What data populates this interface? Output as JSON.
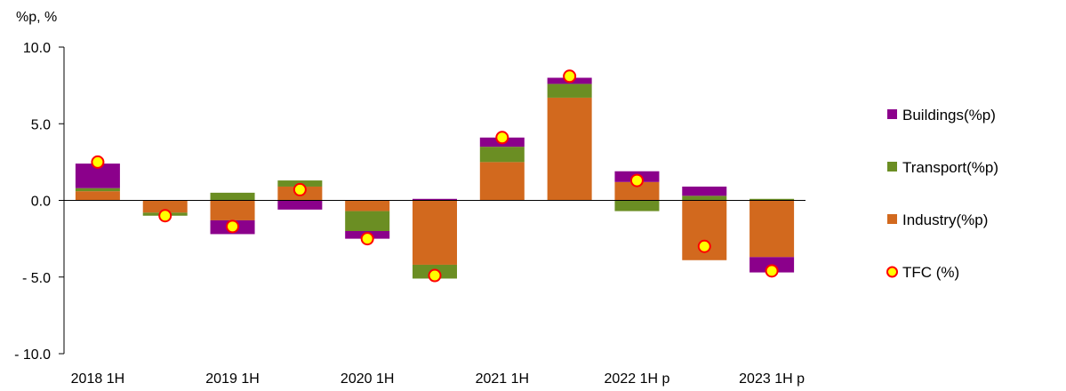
{
  "chart_data": {
    "type": "bar",
    "stacked": true,
    "unit_label": "%p, %",
    "categories": [
      "2018 1H",
      "",
      "2019 1H",
      "",
      "2020 1H",
      "",
      "2021 1H",
      "",
      "2022 1H p",
      "",
      "2023 1H p"
    ],
    "series": [
      {
        "name": "Industry(%p)",
        "kind": "bar",
        "color": "#D2691E",
        "values": [
          0.6,
          -0.8,
          -1.3,
          0.9,
          -0.7,
          -4.2,
          2.5,
          6.7,
          1.2,
          -3.9,
          -3.7
        ]
      },
      {
        "name": "Transport(%p)",
        "kind": "bar",
        "color": "#6B8E23",
        "values": [
          0.2,
          -0.2,
          0.5,
          0.4,
          -1.3,
          -0.9,
          1.0,
          0.9,
          -0.7,
          0.3,
          0.1
        ]
      },
      {
        "name": "Buildings(%p)",
        "kind": "bar",
        "color": "#8B008B",
        "values": [
          1.6,
          0.0,
          -0.9,
          -0.6,
          -0.5,
          0.1,
          0.6,
          0.4,
          0.7,
          0.6,
          -1.0
        ]
      },
      {
        "name": "TFC (%)",
        "kind": "marker",
        "color": "#FFFF00",
        "edge_color": "#FF0000",
        "values": [
          2.5,
          -1.0,
          -1.7,
          0.7,
          -2.5,
          -4.9,
          4.1,
          8.1,
          1.3,
          -3.0,
          -4.6
        ]
      }
    ],
    "ylim": [
      -10,
      10
    ],
    "yticks": [
      {
        "value": 10,
        "label": "10.0"
      },
      {
        "value": 5,
        "label": "5.0"
      },
      {
        "value": 0,
        "label": "0.0"
      },
      {
        "value": -5,
        "label": "- 5.0"
      },
      {
        "value": -10,
        "label": "- 10.0"
      }
    ],
    "grid": false,
    "legend_position": "right",
    "legend_order": [
      "Buildings(%p)",
      "Transport(%p)",
      "Industry(%p)",
      "TFC (%)"
    ]
  }
}
